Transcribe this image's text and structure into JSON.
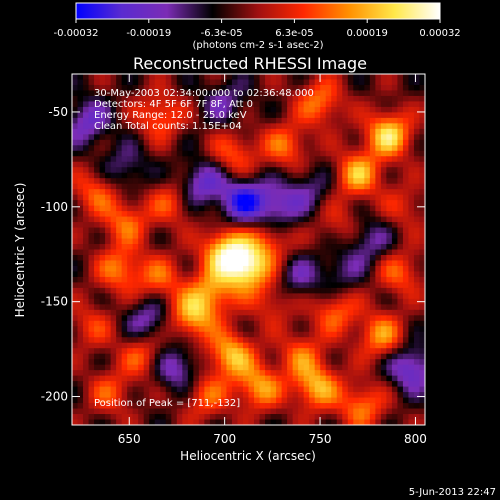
{
  "chart_data": {
    "type": "heatmap",
    "title": "Reconstructed RHESSI Image",
    "xlabel": "Heliocentric X (arcsec)",
    "ylabel": "Heliocentric Y (arcsec)",
    "xlim": [
      620,
      805
    ],
    "ylim": [
      -215,
      -30
    ],
    "x_ticks": [
      650,
      700,
      750,
      800
    ],
    "y_ticks": [
      -50,
      -100,
      -150,
      -200
    ],
    "colorbar": {
      "range": [
        -0.00032,
        0.00032
      ],
      "tick_labels": [
        "-0.00032",
        "-0.00019",
        "-6.3e-05",
        "6.3e-05",
        "0.00019",
        "0.00032"
      ],
      "unit_label": "(photons cm-2 s-1 asec-2)",
      "colormap": [
        "#0000ff",
        "#5a2bd0",
        "#7b2cb5",
        "#000000",
        "#a01010",
        "#ff2800",
        "#ff9000",
        "#ffe84a",
        "#ffffff"
      ]
    },
    "annotations": [
      "30-May-2003 02:34:00.000 to 02:36:48.000",
      "Detectors: 4F 5F 6F 7F 8F, Att 0",
      "Energy Range: 12.0 - 25.0 keV",
      "Clean    Total counts: 1.15E+04"
    ],
    "peak_label": "Position of Peak = [711,-132]",
    "peak": [
      711,
      -132
    ],
    "sources": [
      {
        "x": 711,
        "y": -132,
        "intensity": 1.0
      },
      {
        "x": 700,
        "y": -123,
        "intensity": 0.8
      },
      {
        "x": 693,
        "y": -145,
        "intensity": 0.6
      },
      {
        "x": 723,
        "y": -118,
        "intensity": 0.45
      },
      {
        "x": 786,
        "y": -62,
        "intensity": 0.85
      },
      {
        "x": 770,
        "y": -83,
        "intensity": 0.7
      },
      {
        "x": 750,
        "y": -45,
        "intensity": 0.55
      },
      {
        "x": 732,
        "y": -68,
        "intensity": 0.5
      },
      {
        "x": 705,
        "y": -72,
        "intensity": 0.45
      },
      {
        "x": 666,
        "y": -52,
        "intensity": 0.5
      },
      {
        "x": 632,
        "y": -92,
        "intensity": 0.45
      },
      {
        "x": 648,
        "y": -108,
        "intensity": 0.5
      },
      {
        "x": 672,
        "y": -98,
        "intensity": 0.4
      },
      {
        "x": 645,
        "y": -133,
        "intensity": 0.55
      },
      {
        "x": 666,
        "y": -138,
        "intensity": 0.45
      },
      {
        "x": 683,
        "y": -158,
        "intensity": 0.7
      },
      {
        "x": 703,
        "y": -178,
        "intensity": 0.75
      },
      {
        "x": 718,
        "y": -195,
        "intensity": 0.65
      },
      {
        "x": 740,
        "y": -178,
        "intensity": 0.45
      },
      {
        "x": 758,
        "y": -155,
        "intensity": 0.5
      },
      {
        "x": 782,
        "y": -168,
        "intensity": 0.6
      },
      {
        "x": 792,
        "y": -135,
        "intensity": 0.45
      },
      {
        "x": 748,
        "y": -195,
        "intensity": 0.7
      },
      {
        "x": 772,
        "y": -205,
        "intensity": 0.55
      },
      {
        "x": 657,
        "y": -178,
        "intensity": 0.45
      },
      {
        "x": 630,
        "y": -163,
        "intensity": 0.35
      },
      {
        "x": 640,
        "y": -198,
        "intensity": 0.4
      },
      {
        "x": 690,
        "y": -200,
        "intensity": 0.45
      },
      {
        "x": 725,
        "y": -150,
        "intensity": 0.35
      },
      {
        "x": 760,
        "y": -110,
        "intensity": 0.3
      },
      {
        "x": 795,
        "y": -100,
        "intensity": 0.3
      },
      {
        "x": 628,
        "y": -55,
        "intensity": -0.5
      },
      {
        "x": 688,
        "y": -88,
        "intensity": -0.55
      },
      {
        "x": 710,
        "y": -97,
        "intensity": -0.75
      },
      {
        "x": 728,
        "y": -100,
        "intensity": -0.5
      },
      {
        "x": 775,
        "y": -118,
        "intensity": -0.4
      },
      {
        "x": 660,
        "y": -160,
        "intensity": -0.45
      },
      {
        "x": 738,
        "y": -138,
        "intensity": -0.35
      },
      {
        "x": 675,
        "y": -185,
        "intensity": -0.5
      },
      {
        "x": 798,
        "y": -185,
        "intensity": -0.6
      },
      {
        "x": 760,
        "y": -135,
        "intensity": -0.3
      },
      {
        "x": 648,
        "y": -80,
        "intensity": -0.35
      },
      {
        "x": 745,
        "y": -90,
        "intensity": -0.3
      },
      {
        "x": 700,
        "y": -45,
        "intensity": -0.35
      }
    ]
  },
  "timestamp": "5-Jun-2013 22:47"
}
